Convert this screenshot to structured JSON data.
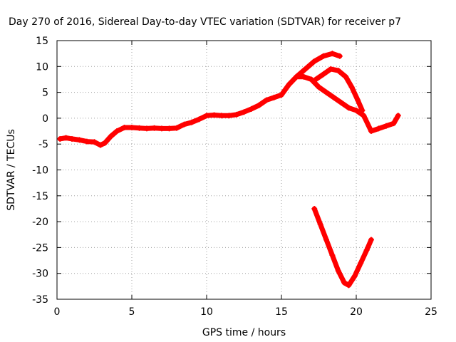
{
  "chart_data": {
    "type": "scatter",
    "title": "Day 270 of 2016, Sidereal Day-to-day VTEC variation (SDTVAR) for receiver p7",
    "xlabel": "GPS time / hours",
    "ylabel": "SDTVAR / TECUs",
    "xlim": [
      0,
      25
    ],
    "ylim": [
      -35,
      15
    ],
    "xticks": [
      0,
      5,
      10,
      15,
      20,
      25
    ],
    "yticks": [
      15,
      10,
      5,
      0,
      -5,
      -10,
      -15,
      -20,
      -25,
      -30,
      -35
    ],
    "grid": true,
    "legend": "none",
    "series": [
      {
        "name": "main-trace",
        "color": "#ff0000",
        "x": [
          0.2,
          0.6,
          1.0,
          1.5,
          2.0,
          2.5,
          2.9,
          3.2,
          3.6,
          4.0,
          4.5,
          5.0,
          5.5,
          6.0,
          6.5,
          7.0,
          7.5,
          8.0,
          8.5,
          9.0,
          9.5,
          10.0,
          10.5,
          11.0,
          11.5,
          12.0,
          12.5,
          13.0,
          13.5,
          14.0,
          14.5,
          15.0,
          15.5,
          16.0,
          16.5,
          17.0,
          17.5,
          18.0,
          18.5,
          19.0,
          19.5,
          20.0,
          20.5,
          21.0,
          21.5,
          22.0,
          22.5,
          22.8
        ],
        "y": [
          -4.0,
          -3.8,
          -4.0,
          -4.2,
          -4.5,
          -4.6,
          -5.2,
          -4.8,
          -3.5,
          -2.5,
          -1.8,
          -1.8,
          -1.9,
          -2.0,
          -1.9,
          -2.0,
          -2.0,
          -1.9,
          -1.2,
          -0.8,
          -0.2,
          0.5,
          0.6,
          0.5,
          0.5,
          0.7,
          1.2,
          1.8,
          2.5,
          3.5,
          4.0,
          4.5,
          6.5,
          8.0,
          8.0,
          7.5,
          6.0,
          5.0,
          4.0,
          3.0,
          2.0,
          1.5,
          0.5,
          -2.5,
          -2.0,
          -1.5,
          -1.0,
          0.5
        ]
      },
      {
        "name": "upper-branch-a",
        "color": "#ff0000",
        "x": [
          16.0,
          16.6,
          17.2,
          17.8,
          18.4,
          18.9
        ],
        "y": [
          8.0,
          9.5,
          11.0,
          12.0,
          12.5,
          12.0
        ]
      },
      {
        "name": "upper-branch-b",
        "color": "#ff0000",
        "x": [
          17.3,
          17.8,
          18.3,
          18.8,
          19.3,
          19.7,
          20.1,
          20.4
        ],
        "y": [
          7.5,
          8.5,
          9.5,
          9.2,
          8.0,
          6.0,
          3.5,
          1.5
        ]
      },
      {
        "name": "lower-trace",
        "color": "#ff0000",
        "x": [
          17.2,
          17.6,
          18.0,
          18.4,
          18.8,
          19.2,
          19.5,
          19.9,
          20.3,
          20.7,
          21.0
        ],
        "y": [
          -17.5,
          -20.5,
          -23.5,
          -26.5,
          -29.5,
          -31.8,
          -32.3,
          -30.5,
          -28.0,
          -25.5,
          -23.5
        ]
      }
    ]
  }
}
